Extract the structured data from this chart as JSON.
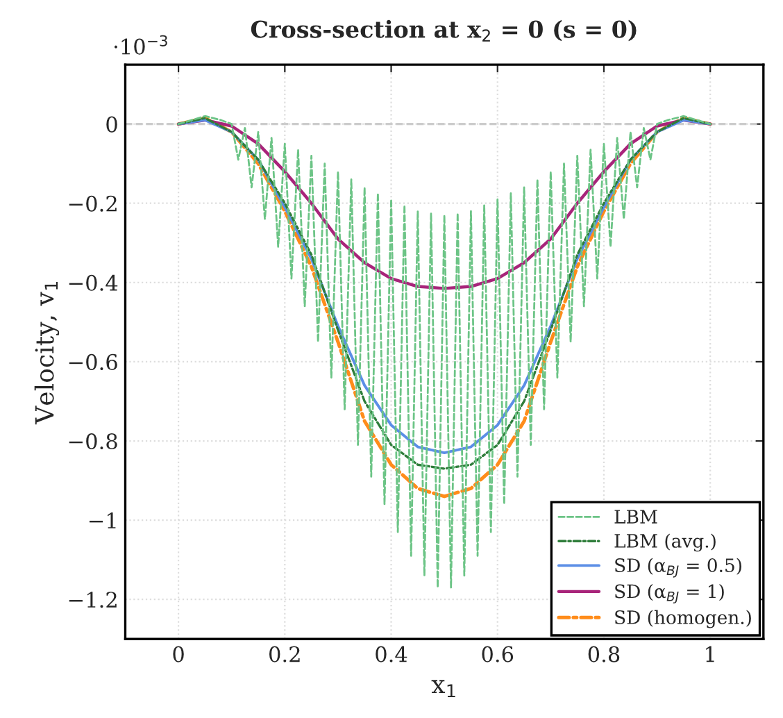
{
  "chart_data": {
    "type": "line",
    "title": "Cross-section at x$_{2}$ = 0 (s = 0)",
    "xlabel": "x$_{1}$",
    "ylabel": "Velocity, v$_{1}$",
    "annotations": [
      "·10$^{−3}$"
    ],
    "xlim": [
      -0.1,
      1.1
    ],
    "xticks": [
      0,
      0.2,
      0.4,
      0.6,
      0.8,
      1
    ],
    "ylim": [
      -1.3,
      0.15
    ],
    "yticks": [
      {
        "value": -1.2,
        "label": "−1.2"
      },
      {
        "value": -1,
        "label": "−1"
      },
      {
        "value": -0.8,
        "label": "−0.8"
      },
      {
        "value": -0.6,
        "label": "−0.6"
      },
      {
        "value": -0.4,
        "label": "−0.4"
      },
      {
        "value": -0.2,
        "label": "−0.2"
      },
      0
    ],
    "grid": true,
    "legend": "bottom right",
    "ref_lines": [
      {
        "axis": "y",
        "value": 0,
        "color": "#cccccc",
        "line_style": "dashed"
      }
    ],
    "series": [
      {
        "name": "LBM",
        "color": "#6cc486",
        "line_style": "dashed",
        "x": [
          0,
          0.05,
          0.08,
          0.1,
          0.1125,
          0.125,
          0.1375,
          0.15,
          0.1625,
          0.175,
          0.1875,
          0.2,
          0.2125,
          0.225,
          0.2375,
          0.25,
          0.2625,
          0.275,
          0.2875,
          0.3,
          0.3125,
          0.325,
          0.3375,
          0.35,
          0.3625,
          0.375,
          0.3875,
          0.4,
          0.4125,
          0.425,
          0.4375,
          0.45,
          0.4625,
          0.475,
          0.4875,
          0.5,
          0.5125,
          0.525,
          0.5375,
          0.55,
          0.5625,
          0.575,
          0.5875,
          0.6,
          0.6125,
          0.625,
          0.6375,
          0.65,
          0.6625,
          0.675,
          0.6875,
          0.7,
          0.7125,
          0.725,
          0.7375,
          0.75,
          0.7625,
          0.775,
          0.7875,
          0.8,
          0.8125,
          0.825,
          0.8375,
          0.85,
          0.8625,
          0.875,
          0.8875,
          0.9,
          0.92,
          0.95,
          1
        ],
        "values": [
          0,
          0.02,
          0.01,
          0,
          -0.09,
          -0.01,
          -0.16,
          -0.02,
          -0.24,
          -0.035,
          -0.31,
          -0.05,
          -0.39,
          -0.065,
          -0.46,
          -0.08,
          -0.55,
          -0.1,
          -0.64,
          -0.12,
          -0.72,
          -0.14,
          -0.81,
          -0.16,
          -0.89,
          -0.175,
          -0.96,
          -0.19,
          -1.03,
          -0.205,
          -1.09,
          -0.22,
          -1.14,
          -0.225,
          -1.17,
          -0.23,
          -1.17,
          -0.225,
          -1.14,
          -0.22,
          -1.09,
          -0.205,
          -1.03,
          -0.19,
          -0.96,
          -0.175,
          -0.89,
          -0.16,
          -0.81,
          -0.14,
          -0.72,
          -0.12,
          -0.64,
          -0.1,
          -0.55,
          -0.08,
          -0.46,
          -0.065,
          -0.39,
          -0.05,
          -0.31,
          -0.035,
          -0.24,
          -0.02,
          -0.16,
          -0.01,
          -0.09,
          0,
          0.01,
          0.02,
          0
        ]
      },
      {
        "name": "LBM (avg.)",
        "color": "#2e7d3a",
        "line_style": "dashdot",
        "x": [
          0,
          0.05,
          0.1,
          0.15,
          0.2,
          0.25,
          0.3,
          0.35,
          0.4,
          0.45,
          0.5,
          0.55,
          0.6,
          0.65,
          0.7,
          0.75,
          0.8,
          0.85,
          0.9,
          0.95,
          1
        ],
        "values": [
          0,
          0.015,
          -0.02,
          -0.09,
          -0.2,
          -0.33,
          -0.52,
          -0.7,
          -0.81,
          -0.86,
          -0.87,
          -0.86,
          -0.81,
          -0.7,
          -0.52,
          -0.33,
          -0.2,
          -0.09,
          -0.02,
          0.015,
          0
        ]
      },
      {
        "name": "SD (α$_{BJ}$ = 0.5)",
        "color": "#5b8ee6",
        "line_style": "solid",
        "x": [
          0,
          0.05,
          0.1,
          0.15,
          0.2,
          0.25,
          0.3,
          0.35,
          0.4,
          0.45,
          0.5,
          0.55,
          0.6,
          0.65,
          0.7,
          0.75,
          0.8,
          0.85,
          0.9,
          0.95,
          1
        ],
        "values": [
          0,
          0.01,
          -0.02,
          -0.09,
          -0.21,
          -0.34,
          -0.51,
          -0.66,
          -0.76,
          -0.815,
          -0.83,
          -0.815,
          -0.76,
          -0.66,
          -0.51,
          -0.34,
          -0.21,
          -0.09,
          -0.02,
          0.01,
          0
        ]
      },
      {
        "name": "SD (α$_{BJ}$ = 1)",
        "color": "#a8247a",
        "line_style": "solid",
        "x": [
          0,
          0.05,
          0.1,
          0.15,
          0.2,
          0.25,
          0.3,
          0.35,
          0.4,
          0.45,
          0.5,
          0.55,
          0.6,
          0.65,
          0.7,
          0.75,
          0.8,
          0.85,
          0.9,
          0.95,
          1
        ],
        "values": [
          0,
          0.01,
          -0.005,
          -0.05,
          -0.12,
          -0.2,
          -0.29,
          -0.35,
          -0.39,
          -0.41,
          -0.415,
          -0.41,
          -0.39,
          -0.35,
          -0.29,
          -0.2,
          -0.12,
          -0.05,
          -0.005,
          0.01,
          0
        ]
      },
      {
        "name": "SD (homogen.)",
        "color": "#ff8c1a",
        "line_style": "dashdot",
        "x": [
          0,
          0.05,
          0.1,
          0.15,
          0.2,
          0.25,
          0.3,
          0.35,
          0.4,
          0.45,
          0.5,
          0.55,
          0.6,
          0.65,
          0.7,
          0.75,
          0.8,
          0.85,
          0.9,
          0.95,
          1
        ],
        "values": [
          0,
          0.015,
          -0.02,
          -0.1,
          -0.22,
          -0.36,
          -0.55,
          -0.75,
          -0.86,
          -0.92,
          -0.94,
          -0.92,
          -0.86,
          -0.75,
          -0.55,
          -0.36,
          -0.22,
          -0.1,
          -0.02,
          0.015,
          0
        ]
      }
    ]
  }
}
